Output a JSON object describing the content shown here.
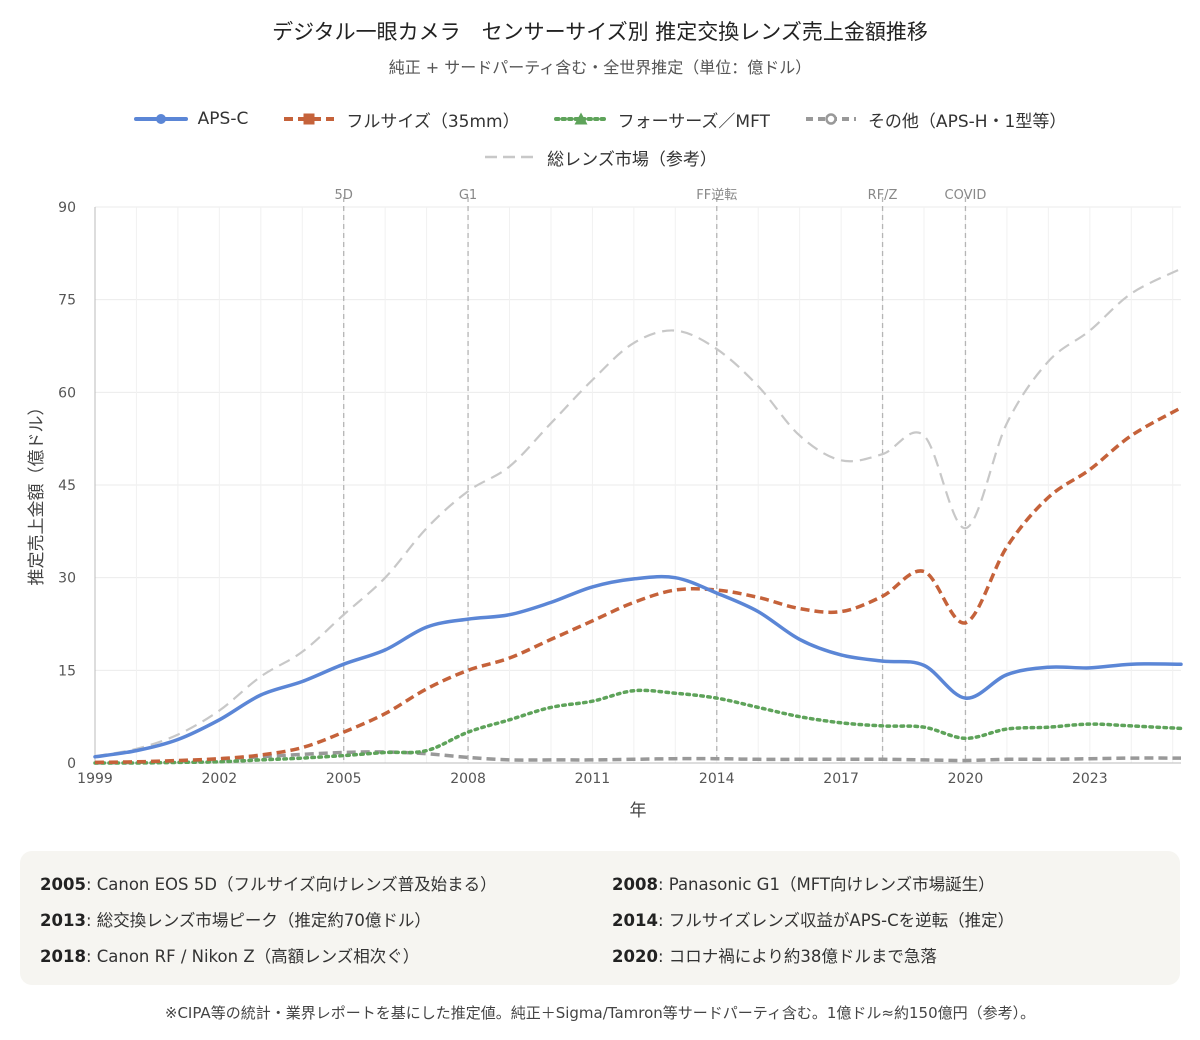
{
  "chart_data": {
    "type": "line",
    "title": "デジタル一眼カメラ　センサーサイズ別 推定交換レンズ売上金額推移",
    "subtitle": "純正 + サードパーティ含む・全世界推定（単位：億ドル）",
    "xlabel": "年",
    "ylabel": "推定売上金額（億ドル）",
    "xlim": [
      1999,
      2025.2
    ],
    "ylim": [
      0,
      90
    ],
    "x_ticks": [
      1999,
      2002,
      2005,
      2008,
      2011,
      2014,
      2017,
      2020,
      2023
    ],
    "y_ticks": [
      0,
      15,
      30,
      45,
      60,
      75,
      90
    ],
    "grid": true,
    "legend_position": "top",
    "x": [
      1999,
      2000,
      2001,
      2002,
      2003,
      2004,
      2005,
      2006,
      2007,
      2008,
      2009,
      2010,
      2011,
      2012,
      2013,
      2014,
      2015,
      2016,
      2017,
      2018,
      2019,
      2020,
      2021,
      2022,
      2023,
      2024,
      2025.2
    ],
    "series": [
      {
        "name": "APS-C",
        "color": "#5b86d6",
        "dash": "solid",
        "marker": "circle",
        "values": [
          1.0,
          2.0,
          3.8,
          7.0,
          11.0,
          13.2,
          16.0,
          18.3,
          22.0,
          23.3,
          24.0,
          26.0,
          28.5,
          29.8,
          30.0,
          27.5,
          24.5,
          20.0,
          17.5,
          16.5,
          15.8,
          10.5,
          14.3,
          15.5,
          15.4,
          16.0,
          16.0
        ]
      },
      {
        "name": "フルサイズ（35mm）",
        "color": "#c5623a",
        "dash": "dashed",
        "marker": "square",
        "values": [
          0.1,
          0.2,
          0.4,
          0.7,
          1.3,
          2.5,
          5.0,
          8.0,
          12.0,
          15.0,
          17.0,
          20.0,
          23.0,
          26.0,
          28.0,
          28.0,
          26.8,
          25.0,
          24.5,
          27.0,
          31.0,
          22.7,
          35.0,
          43.0,
          47.5,
          53.0,
          57.5
        ]
      },
      {
        "name": "フォーサーズ／MFT",
        "color": "#5ea35a",
        "dash": "dotted",
        "marker": "triangle",
        "values": [
          0.0,
          0.0,
          0.1,
          0.2,
          0.5,
          0.8,
          1.2,
          1.7,
          2.0,
          5.0,
          7.0,
          9.0,
          10.0,
          11.7,
          11.3,
          10.5,
          9.0,
          7.5,
          6.5,
          6.0,
          5.8,
          4.0,
          5.5,
          5.8,
          6.3,
          6.0,
          5.6
        ]
      },
      {
        "name": "その他（APS-H・1型等）",
        "color": "#999999",
        "dash": "dashed",
        "marker": "ring",
        "values": [
          0.0,
          0.1,
          0.3,
          0.6,
          1.0,
          1.4,
          1.7,
          1.8,
          1.5,
          0.9,
          0.5,
          0.5,
          0.5,
          0.6,
          0.7,
          0.7,
          0.6,
          0.6,
          0.6,
          0.6,
          0.5,
          0.4,
          0.6,
          0.6,
          0.7,
          0.8,
          0.8
        ]
      },
      {
        "name": "総レンズ市場（参考）",
        "color": "#c8c8c8",
        "dash": "longdash",
        "marker": "none",
        "values": [
          1.1,
          2.3,
          4.6,
          8.5,
          14.0,
          18.0,
          24.0,
          30.0,
          38.0,
          44.0,
          48.0,
          55.0,
          62.0,
          68.0,
          70.0,
          67.0,
          61.0,
          53.0,
          49.0,
          50.0,
          53.0,
          38.0,
          55.0,
          65.0,
          70.0,
          76.0,
          80.0
        ]
      }
    ],
    "annotations": [
      {
        "x": 2005,
        "label": "5D"
      },
      {
        "x": 2008,
        "label": "G1"
      },
      {
        "x": 2014,
        "label": "FF逆転"
      },
      {
        "x": 2018,
        "label": "RF/Z"
      },
      {
        "x": 2020,
        "label": "COVID"
      }
    ]
  },
  "notes": [
    {
      "year": "2005",
      "text": ": Canon EOS 5D（フルサイズ向けレンズ普及始まる）"
    },
    {
      "year": "2008",
      "text": ": Panasonic G1（MFT向けレンズ市場誕生）"
    },
    {
      "year": "2013",
      "text": ": 総交換レンズ市場ピーク（推定約70億ドル）"
    },
    {
      "year": "2014",
      "text": ": フルサイズレンズ収益がAPS-Cを逆転（推定）"
    },
    {
      "year": "2018",
      "text": ": Canon RF / Nikon Z（高額レンズ相次ぐ）"
    },
    {
      "year": "2020",
      "text": ": コロナ禍により約38億ドルまで急落"
    }
  ],
  "footer": "※CIPA等の統計・業界レポートを基にした推定値。純正＋Sigma/Tamron等サードパーティ含む。1億ドル≈約150億円（参考）。"
}
